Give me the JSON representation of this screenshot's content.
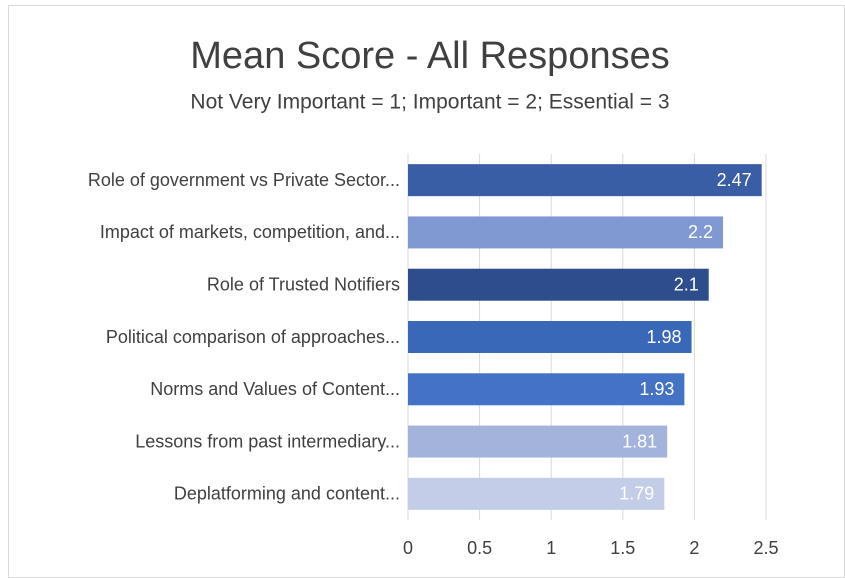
{
  "chart_data": {
    "type": "barh",
    "title": "Mean Score - All Responses",
    "subtitle": "Not Very Important = 1; Important = 2; Essential = 3",
    "categories": [
      "Role of government vs Private Sector...",
      "Impact of markets, competition, and...",
      "Role of Trusted Notifiers",
      "Political comparison of approaches...",
      "Norms and Values of Content...",
      "Lessons from past intermediary...",
      "Deplatforming and content..."
    ],
    "values": [
      2.47,
      2.2,
      2.1,
      1.98,
      1.93,
      1.81,
      1.79
    ],
    "colors": [
      "#3a5ea5",
      "#8099d3",
      "#2e4d8c",
      "#3a68b8",
      "#4472c4",
      "#a3b3db",
      "#c3cde8"
    ],
    "xlim": [
      0,
      2.5
    ],
    "xticks": [
      0,
      0.5,
      1,
      1.5,
      2,
      2.5
    ],
    "grid": true
  }
}
